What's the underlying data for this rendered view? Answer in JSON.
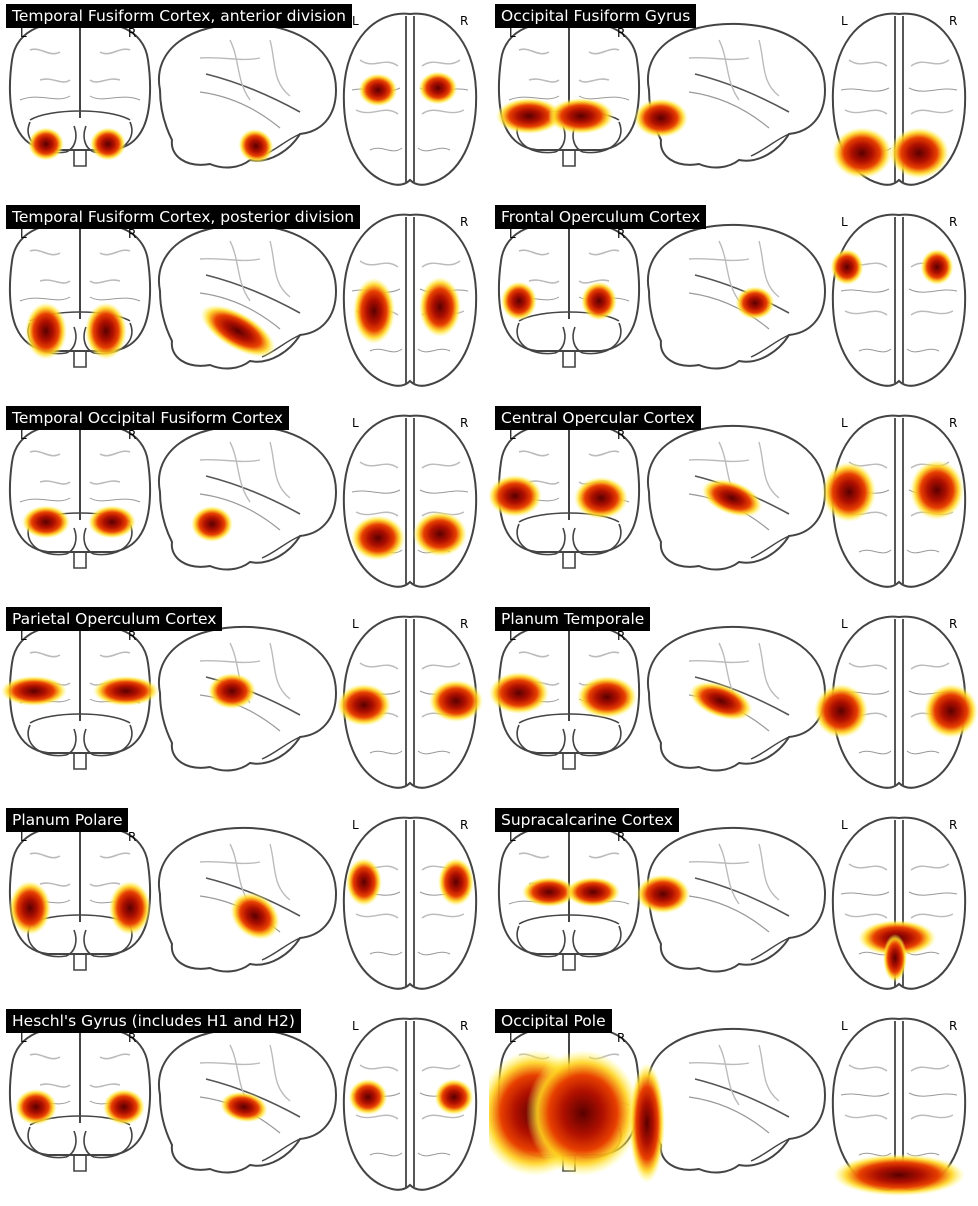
{
  "colors": {
    "blob_core": "#5a0000",
    "blob_mid": "#d42000",
    "blob_edge": "#ffee33",
    "outline": "#444444",
    "title_bg": "#000000",
    "title_text": "#ffffff"
  },
  "panels": [
    {
      "title": "Temporal Fusiform Cortex, anterior division",
      "left_label": "L",
      "right_label": "R"
    },
    {
      "title": "Occipital Fusiform Gyrus",
      "left_label": "L",
      "right_label": "R"
    },
    {
      "title": "Temporal Fusiform Cortex, posterior division",
      "left_label": "L",
      "right_label": "R"
    },
    {
      "title": "Frontal Operculum Cortex",
      "left_label": "L",
      "right_label": "R"
    },
    {
      "title": "Temporal Occipital Fusiform Cortex",
      "left_label": "L",
      "right_label": "R"
    },
    {
      "title": "Central Opercular Cortex",
      "left_label": "L",
      "right_label": "R"
    },
    {
      "title": "Parietal Operculum Cortex",
      "left_label": "L",
      "right_label": "R"
    },
    {
      "title": "Planum Temporale",
      "left_label": "L",
      "right_label": "R"
    },
    {
      "title": "Planum Polare",
      "left_label": "L",
      "right_label": "R"
    },
    {
      "title": "Supracalcarine Cortex",
      "left_label": "L",
      "right_label": "R"
    },
    {
      "title": "Heschl's Gyrus (includes H1 and H2)",
      "left_label": "L",
      "right_label": "R"
    },
    {
      "title": "Occipital Pole",
      "left_label": "L",
      "right_label": "R"
    }
  ]
}
